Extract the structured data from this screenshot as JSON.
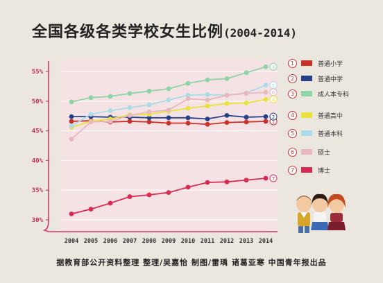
{
  "header": {
    "title": "全国各级各类学校女生比例",
    "years": "(2004-2014)"
  },
  "footer": {
    "credit": "据教育部公开资料整理  整理/吴嘉怡  制图/雷瑀  诸葛亚寒  中国青年报出品"
  },
  "chart_data": {
    "type": "line",
    "title": "全国各级各类学校女生比例",
    "x": [
      "2004",
      "2005",
      "2006",
      "2007",
      "2008",
      "2009",
      "2010",
      "2011",
      "2012",
      "2013",
      "2014"
    ],
    "ylim": [
      28,
      57
    ],
    "yticks": [
      30,
      35,
      40,
      45,
      50,
      55
    ],
    "ytick_labels": [
      "30%",
      "35%",
      "40%",
      "45%",
      "50%",
      "55%"
    ],
    "grid": true,
    "legend_position": "right",
    "series": [
      {
        "id": "1",
        "name": "普通小学",
        "color": "#c8322a",
        "values": [
          46.6,
          46.7,
          46.5,
          46.6,
          46.5,
          46.3,
          46.3,
          46.1,
          46.4,
          46.5,
          46.6
        ]
      },
      {
        "id": "2",
        "name": "普通中学",
        "color": "#26408b",
        "values": [
          47.4,
          47.4,
          47.3,
          47.3,
          47.2,
          47.2,
          47.2,
          47.0,
          47.6,
          47.3,
          47.4
        ]
      },
      {
        "id": "3",
        "name": "成人本专科",
        "color": "#8dd4a6",
        "values": [
          49.9,
          50.6,
          50.8,
          51.3,
          51.7,
          52.1,
          53.0,
          53.6,
          53.8,
          54.8,
          55.8
        ]
      },
      {
        "id": "4",
        "name": "普通高中",
        "color": "#e8e23a",
        "values": [
          45.6,
          46.6,
          47.0,
          47.7,
          47.8,
          48.3,
          48.8,
          49.2,
          49.6,
          49.7,
          50.3
        ]
      },
      {
        "id": "5",
        "name": "普通本科",
        "color": "#a9dbe8",
        "values": [
          45.8,
          47.8,
          48.4,
          48.9,
          49.4,
          50.2,
          51.0,
          51.1,
          51.0,
          51.4,
          52.7
        ]
      },
      {
        "id": "6",
        "name": "硕士",
        "color": "#e8b8be",
        "values": [
          43.6,
          46.5,
          46.6,
          47.6,
          48.2,
          48.5,
          50.4,
          50.2,
          51.0,
          51.3,
          51.5
        ]
      },
      {
        "id": "7",
        "name": "博士",
        "color": "#d92a52",
        "values": [
          31.0,
          31.8,
          32.8,
          33.9,
          34.2,
          34.6,
          35.5,
          36.3,
          36.4,
          36.7,
          37.0
        ]
      }
    ],
    "end_markers": [
      "3",
      "5",
      "6",
      "4",
      "2",
      "1",
      "7"
    ]
  }
}
